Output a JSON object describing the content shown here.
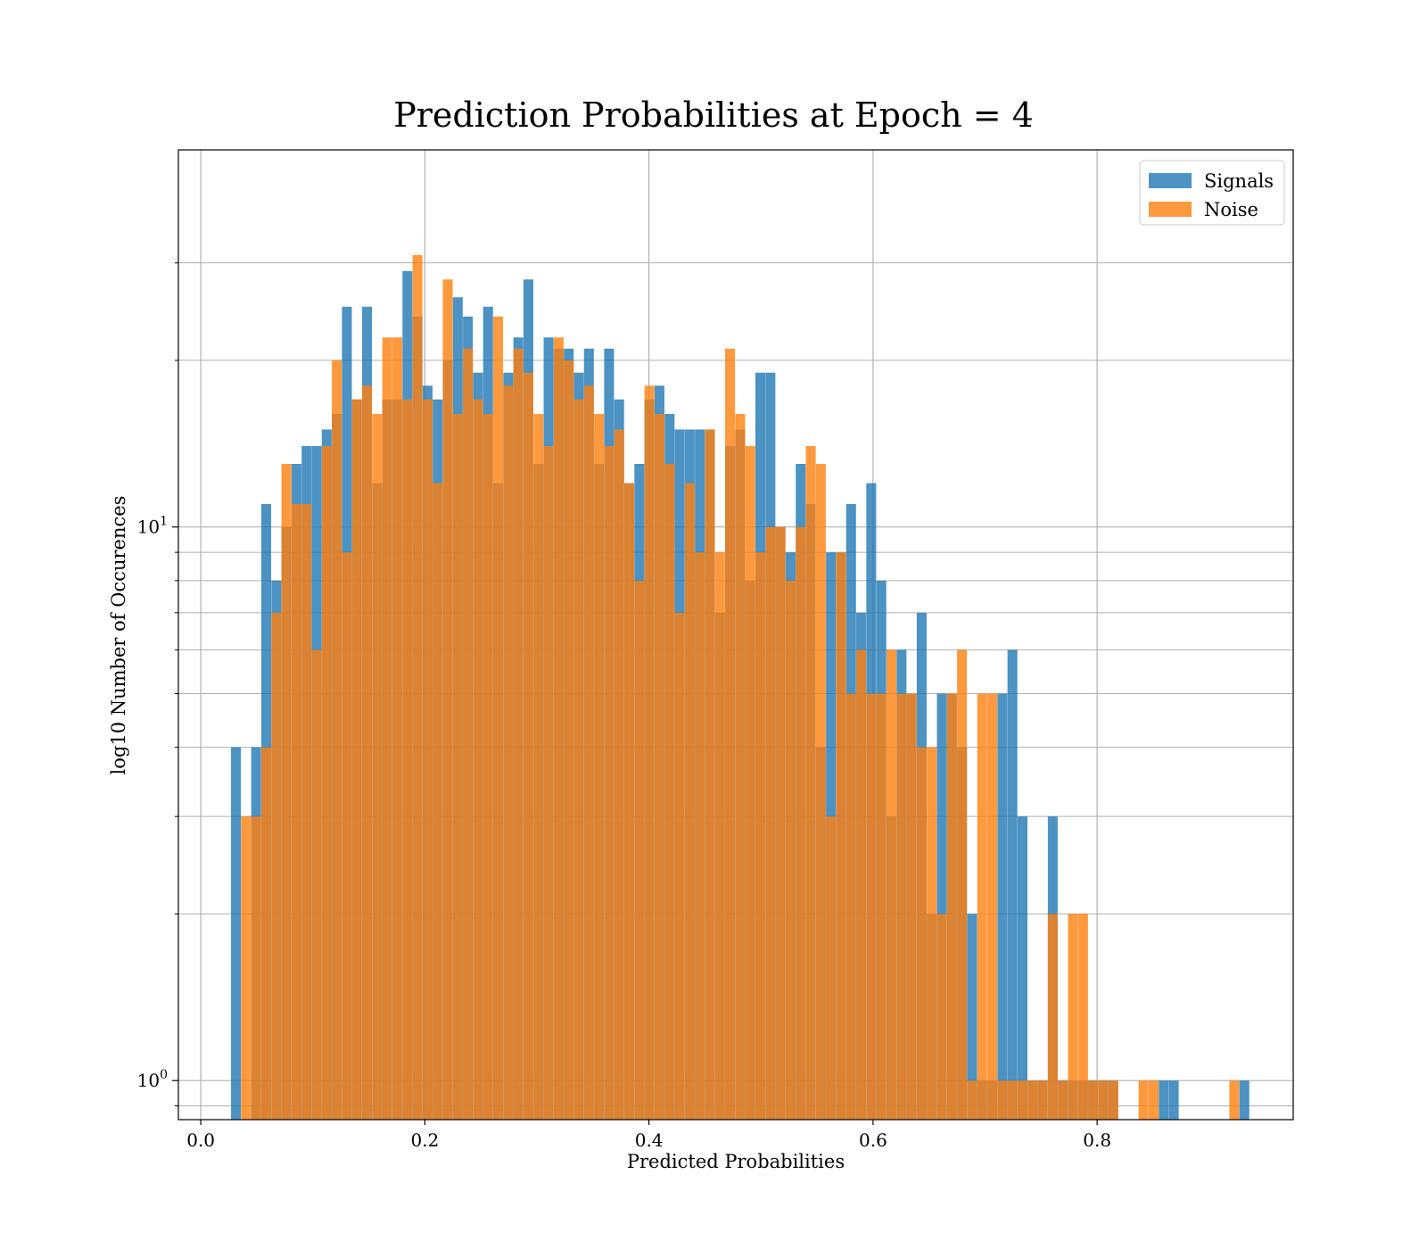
{
  "chart_data": {
    "type": "bar",
    "subtype": "overlapping-histogram",
    "title": "Prediction Probabilities at Epoch = 4",
    "xlabel": "Predicted Probabilities",
    "ylabel": "log10 Number of Occurences",
    "xlim": [
      -0.02,
      0.975
    ],
    "ylim": [
      0.85,
      48
    ],
    "yscale": "log",
    "grid": true,
    "legend_position": "top-right",
    "bin_width": 0.0088,
    "xticks": [
      {
        "value": 0.0,
        "label": "0.0"
      },
      {
        "value": 0.2,
        "label": "0.2"
      },
      {
        "value": 0.4,
        "label": "0.4"
      },
      {
        "value": 0.6,
        "label": "0.6"
      },
      {
        "value": 0.8,
        "label": "0.8"
      }
    ],
    "yticks_major": [
      {
        "value": 1,
        "base": "10",
        "exp": "0"
      },
      {
        "value": 10,
        "base": "10",
        "exp": "1"
      }
    ],
    "yticks_minor": [
      0.9,
      2,
      3,
      4,
      5,
      6,
      7,
      8,
      9,
      20,
      30
    ],
    "series": [
      {
        "name": "Signals",
        "color": "#1f77b4",
        "opacity": 0.8,
        "bins": [
          [
            0.027,
            4
          ],
          [
            0.045,
            4
          ],
          [
            0.054,
            11
          ],
          [
            0.063,
            8
          ],
          [
            0.072,
            10
          ],
          [
            0.081,
            13
          ],
          [
            0.09,
            14
          ],
          [
            0.099,
            14
          ],
          [
            0.108,
            15
          ],
          [
            0.117,
            16
          ],
          [
            0.126,
            25
          ],
          [
            0.135,
            17
          ],
          [
            0.144,
            25
          ],
          [
            0.153,
            12
          ],
          [
            0.162,
            17
          ],
          [
            0.171,
            17
          ],
          [
            0.18,
            29
          ],
          [
            0.189,
            24
          ],
          [
            0.198,
            18
          ],
          [
            0.207,
            17
          ],
          [
            0.216,
            20
          ],
          [
            0.225,
            26
          ],
          [
            0.234,
            24
          ],
          [
            0.243,
            19
          ],
          [
            0.252,
            25
          ],
          [
            0.261,
            12
          ],
          [
            0.27,
            19
          ],
          [
            0.279,
            22
          ],
          [
            0.288,
            28
          ],
          [
            0.297,
            13
          ],
          [
            0.306,
            22
          ],
          [
            0.315,
            21
          ],
          [
            0.324,
            21
          ],
          [
            0.333,
            19
          ],
          [
            0.342,
            21
          ],
          [
            0.351,
            13
          ],
          [
            0.36,
            21
          ],
          [
            0.369,
            17
          ],
          [
            0.378,
            12
          ],
          [
            0.387,
            13
          ],
          [
            0.396,
            17
          ],
          [
            0.405,
            18
          ],
          [
            0.414,
            16
          ],
          [
            0.423,
            15
          ],
          [
            0.432,
            15
          ],
          [
            0.441,
            15
          ],
          [
            0.45,
            15
          ],
          [
            0.459,
            7
          ],
          [
            0.468,
            14
          ],
          [
            0.477,
            15
          ],
          [
            0.486,
            8
          ],
          [
            0.495,
            19
          ],
          [
            0.504,
            19
          ],
          [
            0.513,
            10
          ],
          [
            0.522,
            9
          ],
          [
            0.531,
            13
          ],
          [
            0.54,
            11
          ],
          [
            0.549,
            4
          ],
          [
            0.558,
            9
          ],
          [
            0.567,
            9
          ],
          [
            0.576,
            11
          ],
          [
            0.585,
            7
          ],
          [
            0.594,
            12
          ],
          [
            0.603,
            8
          ],
          [
            0.612,
            3
          ],
          [
            0.621,
            6
          ],
          [
            0.63,
            5
          ],
          [
            0.639,
            7
          ],
          [
            0.648,
            2
          ],
          [
            0.657,
            5
          ],
          [
            0.666,
            5
          ],
          [
            0.675,
            4
          ],
          [
            0.684,
            2
          ],
          [
            0.693,
            1
          ],
          [
            0.702,
            1
          ],
          [
            0.711,
            5
          ],
          [
            0.72,
            6
          ],
          [
            0.729,
            3
          ],
          [
            0.738,
            1
          ],
          [
            0.747,
            1
          ],
          [
            0.756,
            3
          ],
          [
            0.765,
            1
          ],
          [
            0.774,
            1
          ],
          [
            0.783,
            1
          ],
          [
            0.792,
            1
          ],
          [
            0.801,
            1
          ],
          [
            0.81,
            1
          ],
          [
            0.855,
            1
          ],
          [
            0.864,
            1
          ],
          [
            0.927,
            1
          ]
        ]
      },
      {
        "name": "Noise",
        "color": "#ff7f0e",
        "opacity": 0.8,
        "bins": [
          [
            0.036,
            3
          ],
          [
            0.045,
            3
          ],
          [
            0.054,
            4
          ],
          [
            0.063,
            7
          ],
          [
            0.072,
            13
          ],
          [
            0.081,
            11
          ],
          [
            0.09,
            11
          ],
          [
            0.099,
            6
          ],
          [
            0.108,
            14
          ],
          [
            0.117,
            20
          ],
          [
            0.126,
            9
          ],
          [
            0.135,
            17
          ],
          [
            0.144,
            18
          ],
          [
            0.153,
            16
          ],
          [
            0.162,
            22
          ],
          [
            0.171,
            22
          ],
          [
            0.18,
            17
          ],
          [
            0.189,
            31
          ],
          [
            0.198,
            17
          ],
          [
            0.207,
            12
          ],
          [
            0.216,
            28
          ],
          [
            0.225,
            16
          ],
          [
            0.234,
            21
          ],
          [
            0.243,
            17
          ],
          [
            0.252,
            16
          ],
          [
            0.261,
            24
          ],
          [
            0.27,
            18
          ],
          [
            0.279,
            21
          ],
          [
            0.288,
            19
          ],
          [
            0.297,
            16
          ],
          [
            0.306,
            14
          ],
          [
            0.315,
            22
          ],
          [
            0.324,
            20
          ],
          [
            0.333,
            17
          ],
          [
            0.342,
            18
          ],
          [
            0.351,
            16
          ],
          [
            0.36,
            14
          ],
          [
            0.369,
            15
          ],
          [
            0.378,
            12
          ],
          [
            0.387,
            8
          ],
          [
            0.396,
            18
          ],
          [
            0.405,
            16
          ],
          [
            0.414,
            13
          ],
          [
            0.423,
            7
          ],
          [
            0.432,
            12
          ],
          [
            0.441,
            9
          ],
          [
            0.45,
            15
          ],
          [
            0.459,
            9
          ],
          [
            0.468,
            21
          ],
          [
            0.477,
            16
          ],
          [
            0.486,
            14
          ],
          [
            0.495,
            9
          ],
          [
            0.504,
            10
          ],
          [
            0.513,
            10
          ],
          [
            0.522,
            8
          ],
          [
            0.531,
            10
          ],
          [
            0.54,
            14
          ],
          [
            0.549,
            13
          ],
          [
            0.558,
            3
          ],
          [
            0.567,
            9
          ],
          [
            0.576,
            5
          ],
          [
            0.585,
            6
          ],
          [
            0.594,
            5
          ],
          [
            0.603,
            5
          ],
          [
            0.612,
            6
          ],
          [
            0.621,
            5
          ],
          [
            0.63,
            5
          ],
          [
            0.639,
            4
          ],
          [
            0.648,
            4
          ],
          [
            0.657,
            2
          ],
          [
            0.666,
            5
          ],
          [
            0.675,
            6
          ],
          [
            0.684,
            1
          ],
          [
            0.693,
            5
          ],
          [
            0.702,
            5
          ],
          [
            0.711,
            1
          ],
          [
            0.72,
            1
          ],
          [
            0.729,
            1
          ],
          [
            0.738,
            1
          ],
          [
            0.747,
            1
          ],
          [
            0.756,
            2
          ],
          [
            0.765,
            1
          ],
          [
            0.774,
            2
          ],
          [
            0.783,
            2
          ],
          [
            0.792,
            1
          ],
          [
            0.801,
            1
          ],
          [
            0.81,
            1
          ],
          [
            0.837,
            1
          ],
          [
            0.846,
            1
          ],
          [
            0.918,
            1
          ]
        ]
      }
    ]
  }
}
